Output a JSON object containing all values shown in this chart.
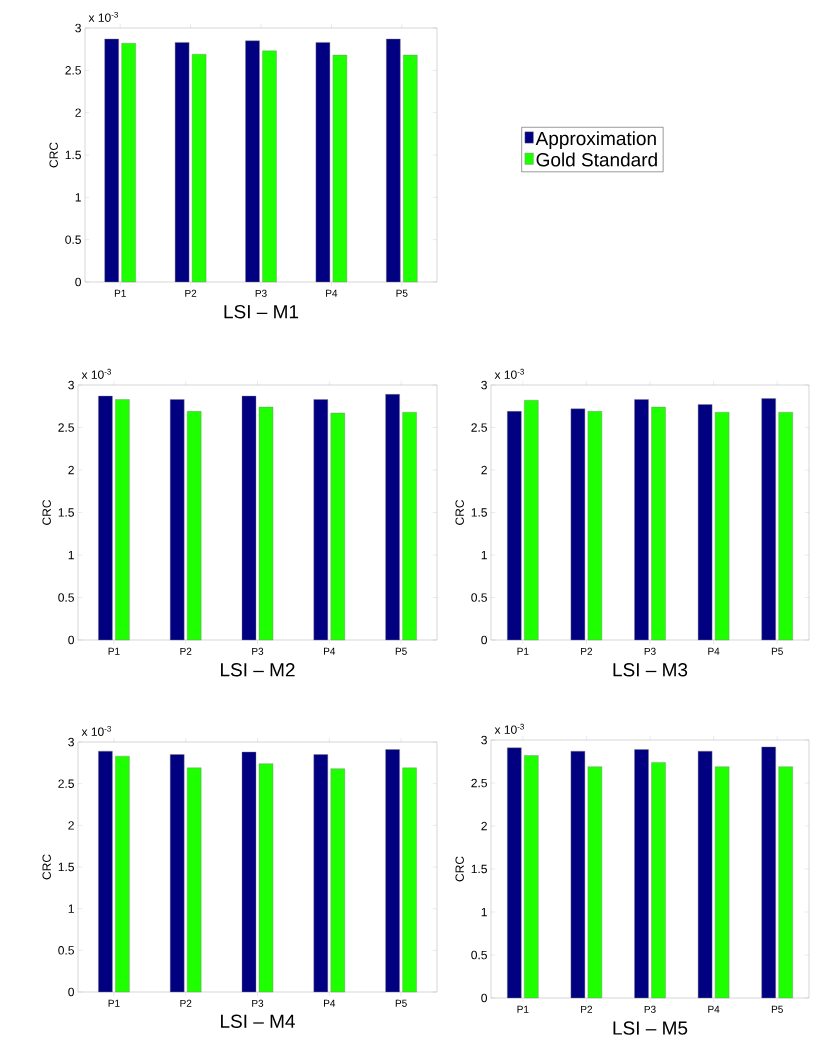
{
  "chart_data": [
    {
      "type": "bar",
      "title": "LSI – M1",
      "ylabel": "CRC",
      "annotations": [
        "x 10$^{-3}$"
      ],
      "categories": [
        "P1",
        "P2",
        "P3",
        "P4",
        "P5"
      ],
      "ylim": [
        0,
        3
      ],
      "yticks": [
        0,
        0.5,
        1,
        1.5,
        2,
        2.5,
        3
      ],
      "grid": false,
      "legend": "right",
      "series": [
        {
          "name": "Approximation",
          "color": "#000080",
          "values": [
            2.87,
            2.83,
            2.85,
            2.83,
            2.87
          ]
        },
        {
          "name": "Gold Standard",
          "color": "#1eff00",
          "values": [
            2.82,
            2.69,
            2.73,
            2.68,
            2.68
          ]
        }
      ]
    },
    {
      "type": "bar",
      "title": "LSI – M2",
      "ylabel": "CRC",
      "annotations": [
        "x 10$^{-3}$"
      ],
      "categories": [
        "P1",
        "P2",
        "P3",
        "P4",
        "P5"
      ],
      "ylim": [
        0,
        3
      ],
      "yticks": [
        0,
        0.5,
        1,
        1.5,
        2,
        2.5,
        3
      ],
      "grid": false,
      "series": [
        {
          "color": "#000080",
          "values": [
            2.87,
            2.83,
            2.87,
            2.83,
            2.89
          ]
        },
        {
          "color": "#1eff00",
          "values": [
            2.83,
            2.69,
            2.74,
            2.67,
            2.68
          ]
        }
      ]
    },
    {
      "type": "bar",
      "title": "LSI – M3",
      "ylabel": "CRC",
      "annotations": [
        "x 10$^{-3}$"
      ],
      "categories": [
        "P1",
        "P2",
        "P3",
        "P4",
        "P5"
      ],
      "ylim": [
        0,
        3
      ],
      "yticks": [
        0,
        0.5,
        1,
        1.5,
        2,
        2.5,
        3
      ],
      "grid": false,
      "series": [
        {
          "color": "#000080",
          "values": [
            2.69,
            2.72,
            2.83,
            2.77,
            2.84
          ]
        },
        {
          "color": "#1eff00",
          "values": [
            2.82,
            2.69,
            2.74,
            2.68,
            2.68
          ]
        }
      ]
    },
    {
      "type": "bar",
      "title": "LSI – M4",
      "ylabel": "CRC",
      "annotations": [
        "x 10$^{-3}$"
      ],
      "categories": [
        "P1",
        "P2",
        "P3",
        "P4",
        "P5"
      ],
      "ylim": [
        0,
        3
      ],
      "yticks": [
        0,
        0.5,
        1,
        1.5,
        2,
        2.5,
        3
      ],
      "grid": false,
      "series": [
        {
          "color": "#000080",
          "values": [
            2.89,
            2.85,
            2.88,
            2.85,
            2.91
          ]
        },
        {
          "color": "#1eff00",
          "values": [
            2.83,
            2.69,
            2.74,
            2.68,
            2.69
          ]
        }
      ]
    },
    {
      "type": "bar",
      "title": "LSI – M5",
      "ylabel": "CRC",
      "annotations": [
        "x 10$^{-3}$"
      ],
      "categories": [
        "P1",
        "P2",
        "P3",
        "P4",
        "P5"
      ],
      "ylim": [
        0,
        3
      ],
      "yticks": [
        0,
        0.5,
        1,
        1.5,
        2,
        2.5,
        3
      ],
      "grid": false,
      "series": [
        {
          "color": "#000080",
          "values": [
            2.91,
            2.87,
            2.89,
            2.87,
            2.92
          ]
        },
        {
          "color": "#1eff00",
          "values": [
            2.82,
            2.69,
            2.74,
            2.69,
            2.69
          ]
        }
      ]
    }
  ]
}
